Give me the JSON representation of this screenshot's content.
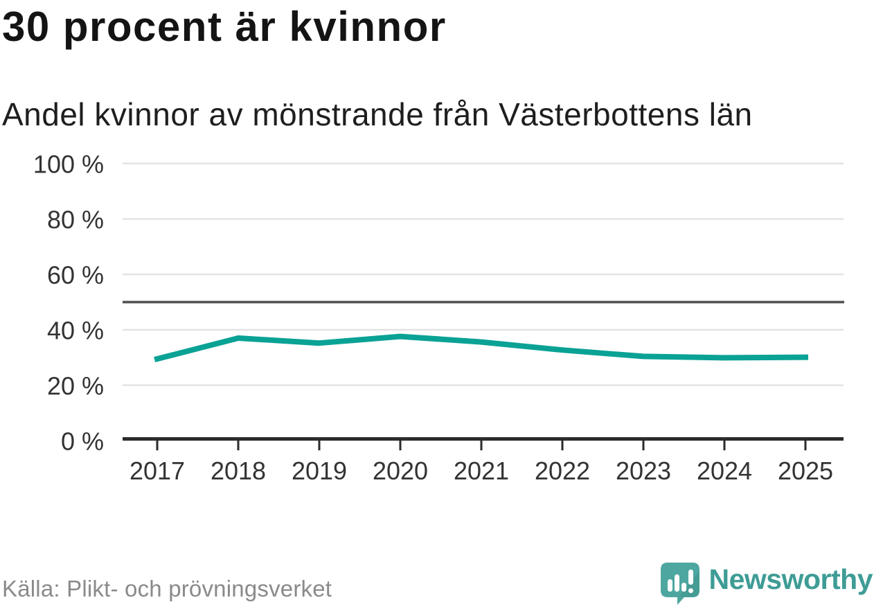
{
  "header": {
    "title": "30 procent är kvinnor",
    "subtitle": "Andel kvinnor av mönstrande från Västerbottens län"
  },
  "chart_data": {
    "type": "line",
    "title": "30 procent är kvinnor",
    "subtitle": "Andel kvinnor av mönstrande från Västerbottens län",
    "categories": [
      "2017",
      "2018",
      "2019",
      "2020",
      "2021",
      "2022",
      "2023",
      "2024",
      "2025"
    ],
    "series": [
      {
        "name": "Andel kvinnor av mönstrande",
        "color": "#0aa295",
        "values": [
          29.5,
          37.0,
          35.2,
          37.6,
          35.6,
          32.7,
          30.4,
          29.9,
          30.1
        ]
      }
    ],
    "xlabel": "",
    "ylabel": "",
    "unit": "%",
    "ylim": [
      0,
      100
    ],
    "yticks": [
      {
        "value": 0,
        "label": "0 %"
      },
      {
        "value": 20,
        "label": "20 %"
      },
      {
        "value": 40,
        "label": "40 %"
      },
      {
        "value": 60,
        "label": "60 %"
      },
      {
        "value": 80,
        "label": "80 %"
      },
      {
        "value": 100,
        "label": "100 %"
      }
    ],
    "reference_line": {
      "value": 50
    },
    "grid": "horizontal-light",
    "legend": "none"
  },
  "footer": {
    "source": "Källa: Plikt- och prövningsverket",
    "brand_name": "Newsworthy"
  },
  "colors": {
    "line": "#0aa295",
    "grid": "#e3e3e3",
    "reference": "#4f4f4f",
    "axis": "#2b2b2b",
    "tick_label": "#333333",
    "source_text": "#8a8a8a",
    "brand_text": "#3e9c95",
    "logo_bubble": "#4da7a0",
    "logo_bubble_shade": "#3f948d"
  }
}
